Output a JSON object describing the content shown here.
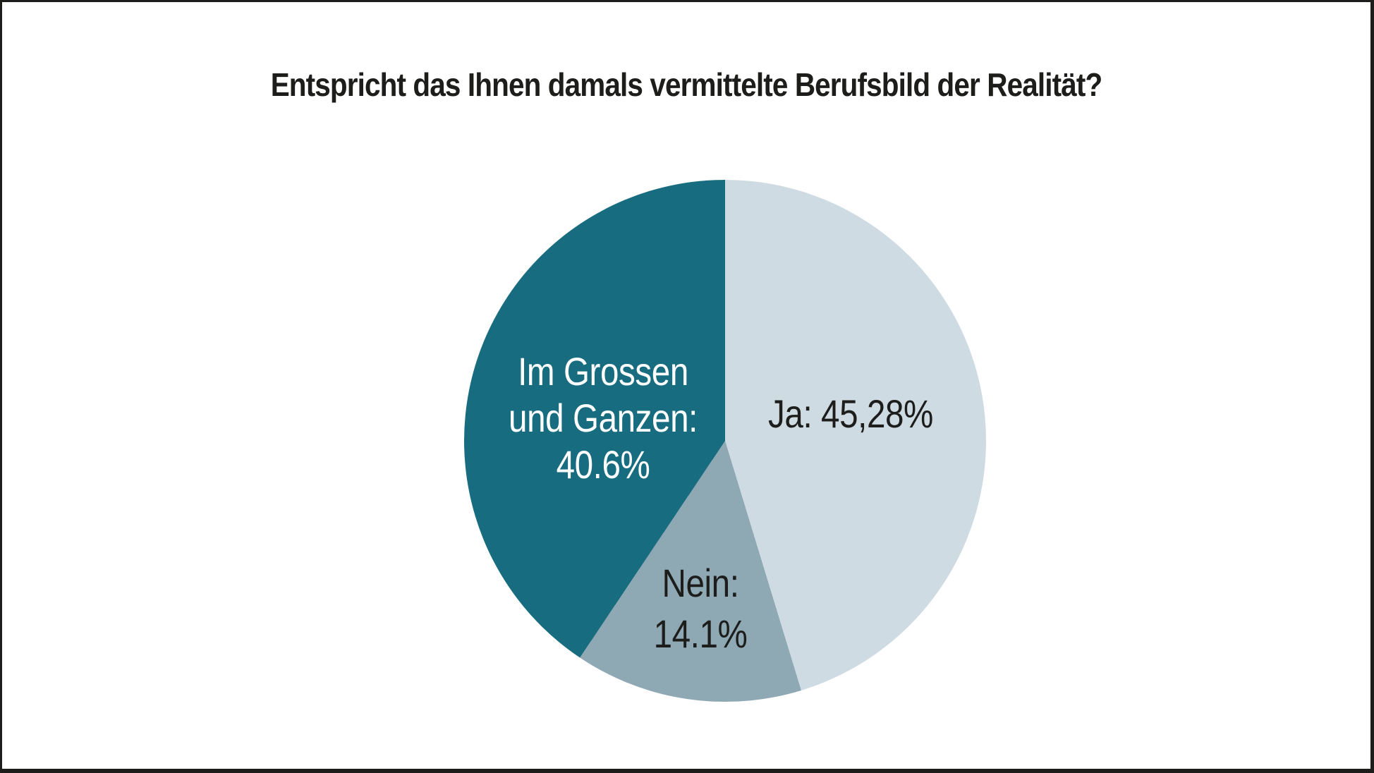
{
  "chart_data": {
    "type": "pie",
    "title": "Entspricht das Ihnen damals vermittelte Berufsbild der Realität?",
    "legend_position": "none",
    "start_angle_deg": 0,
    "direction": "clockwise",
    "slices": [
      {
        "name": "Ja",
        "value": 45.28,
        "label": "Ja: 45,28%",
        "color": "#cfdbe2",
        "label_color": "#1d1d1b"
      },
      {
        "name": "Nein",
        "value": 14.1,
        "label": "Nein:\n14.1%",
        "color": "#8ea8b4",
        "label_color": "#1d1d1b"
      },
      {
        "name": "Im Grossen und Ganzen",
        "value": 40.6,
        "label": "Im Grossen\nund Ganzen:\n40.6%",
        "color": "#176c80",
        "label_color": "#ffffff"
      }
    ],
    "colors": {
      "background": "#ffffff",
      "frame_border": "#1d1d1b",
      "title_text": "#1d1d1b"
    }
  }
}
